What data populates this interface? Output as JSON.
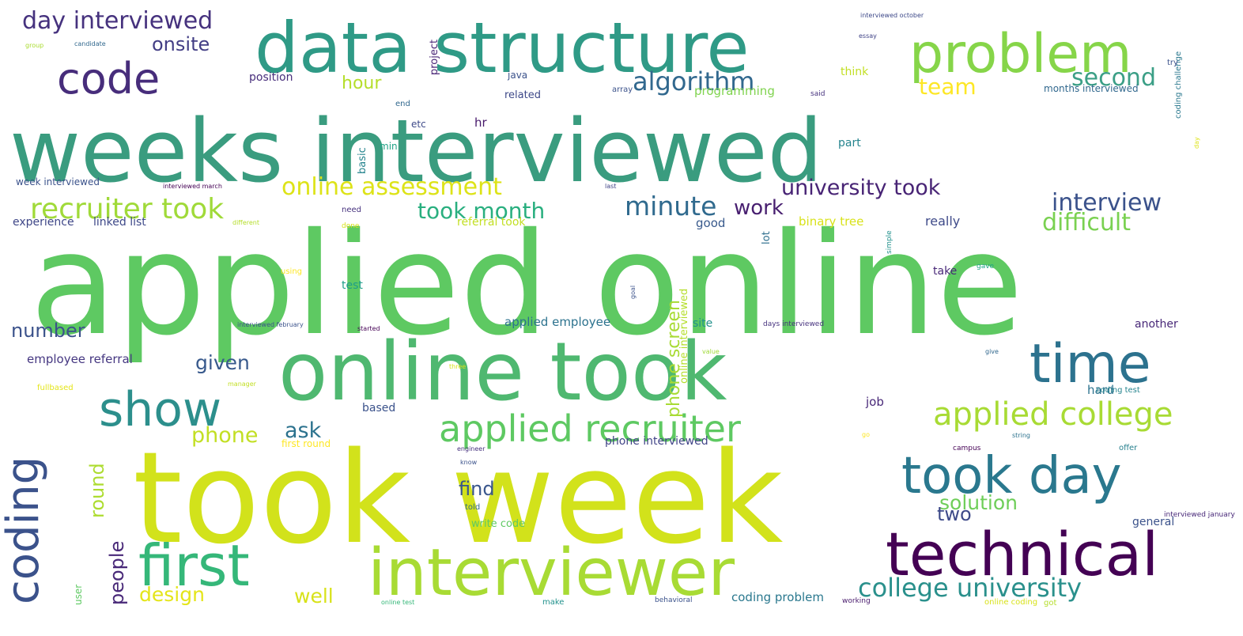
{
  "words": [
    {
      "text": "applied online",
      "color": "#5ec962"
    },
    {
      "text": "weeks interviewed",
      "color": "#3a9c7f"
    },
    {
      "text": "took week",
      "color": "#d2e21b"
    },
    {
      "text": "online took",
      "color": "#4fb870"
    },
    {
      "text": "data structure",
      "color": "#2f9a86"
    },
    {
      "text": "interviewer",
      "color": "#a8db34"
    },
    {
      "text": "technical",
      "color": "#440154"
    },
    {
      "text": "problem",
      "color": "#86d549"
    },
    {
      "text": "first",
      "color": "#35b779"
    },
    {
      "text": "time",
      "color": "#2c728e"
    },
    {
      "text": "took day",
      "color": "#2a788e"
    },
    {
      "text": "coding",
      "color": "#3b528b"
    },
    {
      "text": "code",
      "color": "#472d7b"
    },
    {
      "text": "show",
      "color": "#2c8f8c"
    },
    {
      "text": "applied recruiter",
      "color": "#5ec962"
    },
    {
      "text": "applied college",
      "color": "#a8db34"
    },
    {
      "text": "college university",
      "color": "#2a908c"
    },
    {
      "text": "algorithm",
      "color": "#31688e"
    },
    {
      "text": "online assessment",
      "color": "#dde318"
    },
    {
      "text": "university took",
      "color": "#482475"
    },
    {
      "text": "recruiter took",
      "color": "#a0da39"
    },
    {
      "text": "took month",
      "color": "#29af7f"
    },
    {
      "text": "minute",
      "color": "#306a8e"
    },
    {
      "text": "work",
      "color": "#481f70"
    },
    {
      "text": "interview",
      "color": "#3b528b"
    },
    {
      "text": "difficult",
      "color": "#7ad151"
    },
    {
      "text": "day interviewed",
      "color": "#46327e"
    },
    {
      "text": "onsite",
      "color": "#433e85"
    },
    {
      "text": "second",
      "color": "#3b9f86"
    },
    {
      "text": "team",
      "color": "#fde725"
    },
    {
      "text": "hour",
      "color": "#b5de2b"
    },
    {
      "text": "phone screen",
      "color": "#a8db34"
    },
    {
      "text": "given",
      "color": "#38598c"
    },
    {
      "text": "number",
      "color": "#3b528b"
    },
    {
      "text": "ask",
      "color": "#2c728e"
    },
    {
      "text": "phone",
      "color": "#c2df23"
    },
    {
      "text": "round",
      "color": "#addc30"
    },
    {
      "text": "people",
      "color": "#482878"
    },
    {
      "text": "design",
      "color": "#e4e51a"
    },
    {
      "text": "find",
      "color": "#39568c"
    },
    {
      "text": "solution",
      "color": "#6ece58"
    },
    {
      "text": "two",
      "color": "#3e4a89"
    },
    {
      "text": "well",
      "color": "#d8e219"
    },
    {
      "text": "employee referral",
      "color": "#453781"
    },
    {
      "text": "experience",
      "color": "#3f4788"
    },
    {
      "text": "linked list",
      "color": "#3e4989"
    },
    {
      "text": "week interviewed",
      "color": "#3b528b"
    },
    {
      "text": "position",
      "color": "#472d7b"
    },
    {
      "text": "java",
      "color": "#3b528b"
    },
    {
      "text": "project",
      "color": "#482475"
    },
    {
      "text": "related",
      "color": "#3e4989"
    },
    {
      "text": "array",
      "color": "#3b528b"
    },
    {
      "text": "programming",
      "color": "#7fd34e"
    },
    {
      "text": "said",
      "color": "#46327e"
    },
    {
      "text": "think",
      "color": "#c2df23"
    },
    {
      "text": "months interviewed",
      "color": "#31688e"
    },
    {
      "text": "coding challenge",
      "color": "#2a788e"
    },
    {
      "text": "interviewed october",
      "color": "#3e4989"
    },
    {
      "text": "essay",
      "color": "#414487"
    },
    {
      "text": "candidate",
      "color": "#31688e"
    },
    {
      "text": "group",
      "color": "#aadc32"
    },
    {
      "text": "end",
      "color": "#31688e"
    },
    {
      "text": "etc",
      "color": "#3e4a89"
    },
    {
      "text": "hr",
      "color": "#481a6c"
    },
    {
      "text": "min",
      "color": "#20a386"
    },
    {
      "text": "basic",
      "color": "#25848e"
    },
    {
      "text": "part",
      "color": "#25848e"
    },
    {
      "text": "interviewed march",
      "color": "#440154"
    },
    {
      "text": "last",
      "color": "#414487"
    },
    {
      "text": "need",
      "color": "#46327e"
    },
    {
      "text": "done",
      "color": "#d8e219"
    },
    {
      "text": "different",
      "color": "#b5de2b"
    },
    {
      "text": "referral took",
      "color": "#c2df23"
    },
    {
      "text": "binary tree",
      "color": "#d8e219"
    },
    {
      "text": "good",
      "color": "#38598c"
    },
    {
      "text": "lot",
      "color": "#2e6f8e"
    },
    {
      "text": "really",
      "color": "#3e4a89"
    },
    {
      "text": "using",
      "color": "#fde725"
    },
    {
      "text": "test",
      "color": "#1f9e89"
    },
    {
      "text": "take",
      "color": "#482878"
    },
    {
      "text": "simple",
      "color": "#21918c"
    },
    {
      "text": "gave",
      "color": "#20a386"
    },
    {
      "text": "applied employee",
      "color": "#2c728e"
    },
    {
      "text": "interviewed february",
      "color": "#3b528b"
    },
    {
      "text": "started",
      "color": "#440154"
    },
    {
      "text": "site",
      "color": "#21918c"
    },
    {
      "text": "days interviewed",
      "color": "#46327e"
    },
    {
      "text": "another",
      "color": "#482878"
    },
    {
      "text": "online interviewed",
      "color": "#b5de2b"
    },
    {
      "text": "three",
      "color": "#d8e219"
    },
    {
      "text": "manager",
      "color": "#c2df23"
    },
    {
      "text": "fullbased",
      "color": "#e4e51a"
    },
    {
      "text": "based",
      "color": "#3b528b"
    },
    {
      "text": "job",
      "color": "#482878"
    },
    {
      "text": "hard",
      "color": "#2c728e"
    },
    {
      "text": "coding test",
      "color": "#25848e"
    },
    {
      "text": "first round",
      "color": "#fde725"
    },
    {
      "text": "phone interviewed",
      "color": "#414487"
    },
    {
      "text": "engineer",
      "color": "#46327e"
    },
    {
      "text": "know",
      "color": "#3b528b"
    },
    {
      "text": "told",
      "color": "#31688e"
    },
    {
      "text": "write code",
      "color": "#5ec962"
    },
    {
      "text": "campus",
      "color": "#440154"
    },
    {
      "text": "string",
      "color": "#2c728e"
    },
    {
      "text": "offer",
      "color": "#27808e"
    },
    {
      "text": "general",
      "color": "#3b528b"
    },
    {
      "text": "interviewed january",
      "color": "#482878"
    },
    {
      "text": "online test",
      "color": "#35b779"
    },
    {
      "text": "make",
      "color": "#21918c"
    },
    {
      "text": "behavioral",
      "color": "#3b528b"
    },
    {
      "text": "coding problem",
      "color": "#2a788e"
    },
    {
      "text": "working",
      "color": "#481a6c"
    },
    {
      "text": "online coding",
      "color": "#d8e219"
    },
    {
      "text": "got",
      "color": "#b5de2b"
    },
    {
      "text": "user",
      "color": "#5ec962"
    },
    {
      "text": "go",
      "color": "#fde725"
    },
    {
      "text": "try",
      "color": "#3b528b"
    },
    {
      "text": "day",
      "color": "#dde318"
    },
    {
      "text": "value",
      "color": "#a0da39"
    },
    {
      "text": "goal",
      "color": "#3b528b"
    },
    {
      "text": "give",
      "color": "#31688e"
    }
  ]
}
